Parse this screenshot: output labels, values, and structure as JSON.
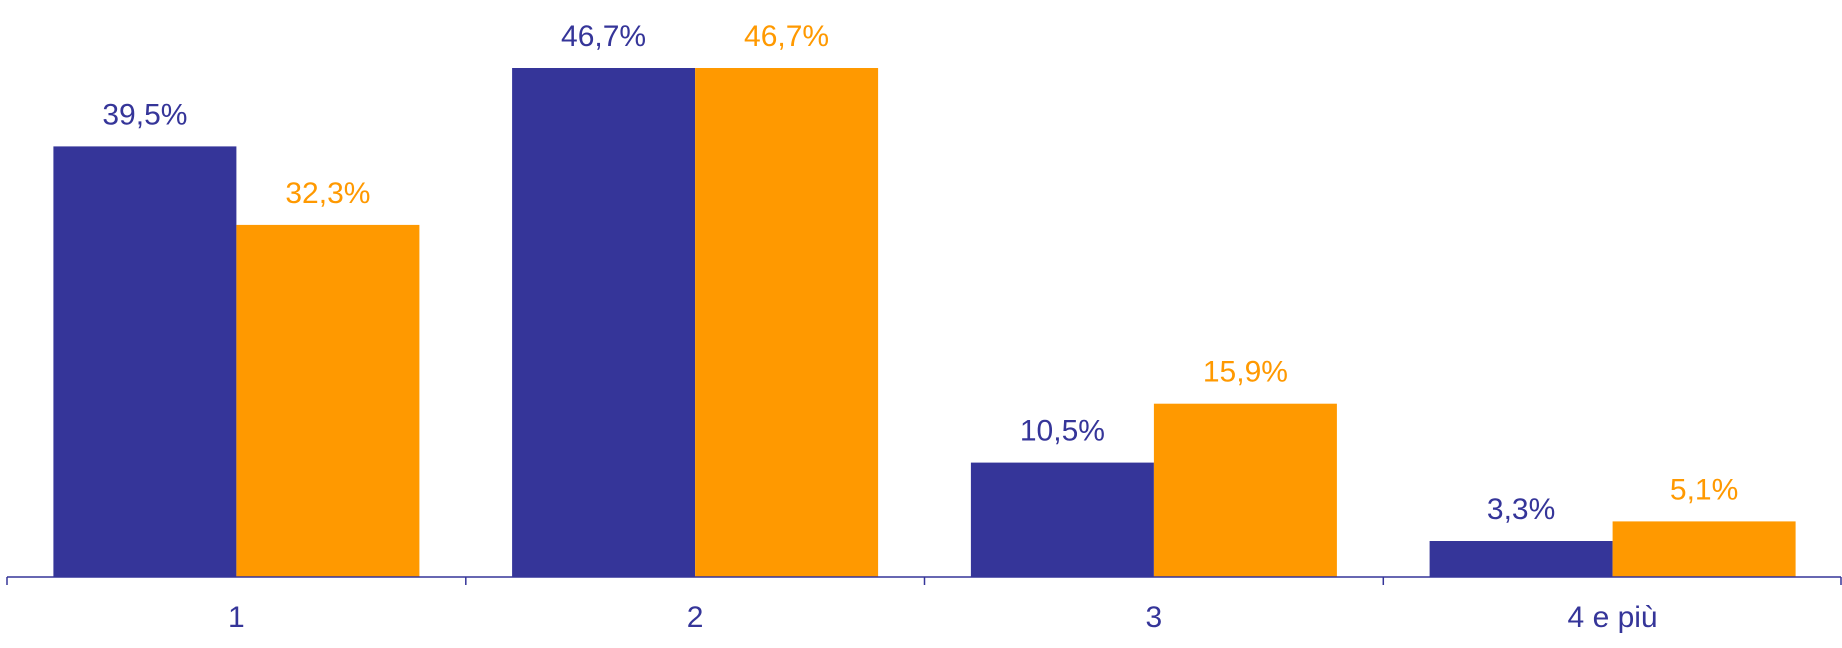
{
  "chart_data": {
    "type": "bar",
    "categories": [
      "1",
      "2",
      "3",
      "4 e più"
    ],
    "series": [
      {
        "values": [
          39.5,
          46.7,
          10.5,
          3.3
        ],
        "labels": [
          "39,5%",
          "46,7%",
          "10,5%",
          "3,3%"
        ],
        "color": "#353599"
      },
      {
        "values": [
          32.3,
          46.7,
          15.9,
          5.1
        ],
        "labels": [
          "32,3%",
          "46,7%",
          "15,9%",
          "5,1%"
        ],
        "color": "#FF9900"
      }
    ],
    "title": "",
    "xlabel": "",
    "ylabel": "",
    "ylim": [
      0,
      50
    ],
    "grid": false,
    "legend": "none",
    "axis_color": "#353599",
    "tick_label_color": "#353599"
  }
}
